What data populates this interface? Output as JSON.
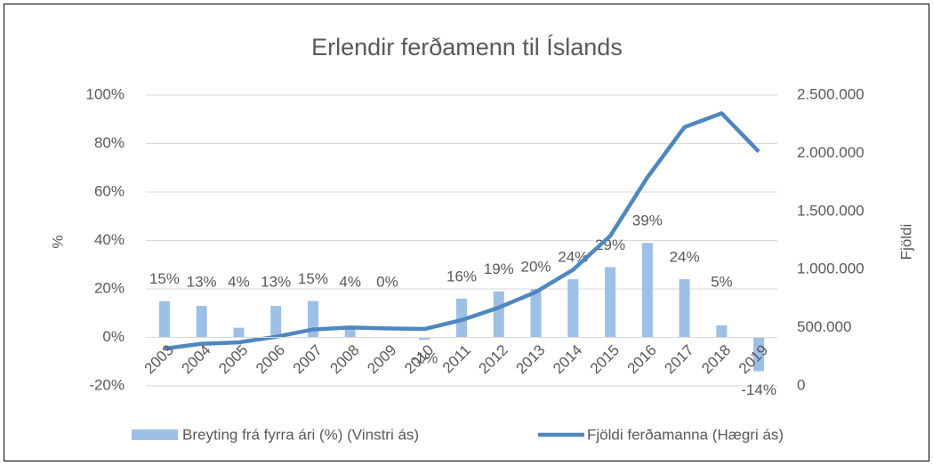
{
  "chart_data": {
    "type": "bar_line",
    "title": "Erlendir ferðamenn til Íslands",
    "ylabel": "%",
    "y2label": "Fjöldi",
    "categories": [
      "2003",
      "2004",
      "2005",
      "2006",
      "2007",
      "2008",
      "2009",
      "2010",
      "2011",
      "2012",
      "2013",
      "2014",
      "2015",
      "2016",
      "2017",
      "2018",
      "2019"
    ],
    "series": [
      {
        "name": "Breyting frá fyrra ári (%) (Vinstri ás)",
        "type": "bar",
        "axis": "y",
        "color": "#9dc0e6",
        "values": [
          15,
          13,
          4,
          13,
          15,
          4,
          0,
          -1,
          16,
          19,
          20,
          24,
          29,
          39,
          24,
          5,
          -14
        ],
        "value_labels": [
          "15%",
          "13%",
          "4%",
          "13%",
          "15%",
          "4%",
          "0%",
          "-1%",
          "16%",
          "19%",
          "20%",
          "24%",
          "29%",
          "39%",
          "24%",
          "5%",
          "-14%"
        ]
      },
      {
        "name": "Fjöldi ferðamanna (Hægri ás)",
        "type": "line",
        "axis": "y2",
        "color": "#4f87c0",
        "values": [
          320000,
          362000,
          374000,
          422000,
          485000,
          502000,
          494000,
          489000,
          566000,
          673000,
          807000,
          998000,
          1289000,
          1792000,
          2225000,
          2344000,
          2014000
        ]
      }
    ],
    "ylim": [
      -20,
      100
    ],
    "yticks": [
      {
        "value": -20,
        "label": "-20%"
      },
      {
        "value": 0,
        "label": "0%"
      },
      {
        "value": 20,
        "label": "20%"
      },
      {
        "value": 40,
        "label": "40%"
      },
      {
        "value": 60,
        "label": "60%"
      },
      {
        "value": 80,
        "label": "80%"
      },
      {
        "value": 100,
        "label": "100%"
      }
    ],
    "y2lim": [
      0,
      2500000
    ],
    "y2ticks": [
      0,
      {
        "value": 500000,
        "label": "500.000"
      },
      {
        "value": 1000000,
        "label": "1.000.000"
      },
      {
        "value": 1500000,
        "label": "1.500.000"
      },
      {
        "value": 2000000,
        "label": "2.000.000"
      },
      {
        "value": 2500000,
        "label": "2.500.000"
      }
    ],
    "grid": true,
    "legend": "bottom"
  }
}
